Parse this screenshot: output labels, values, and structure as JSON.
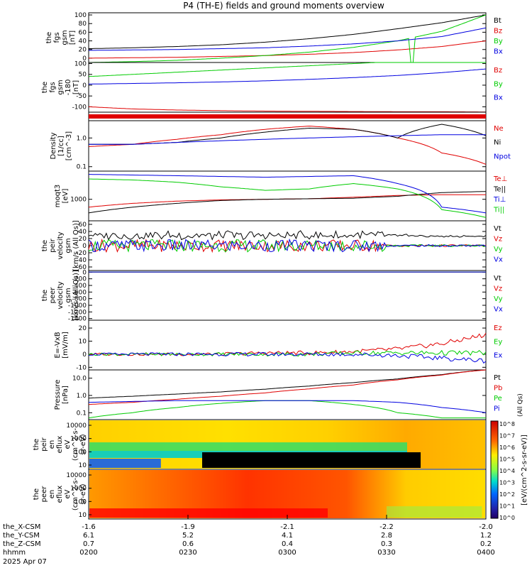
{
  "title": "P4 (TH-E) fields and ground moments overview",
  "colors": {
    "black": "#000000",
    "red": "#e00000",
    "green": "#00cc00",
    "blue": "#0000e0"
  },
  "chart_data": [
    {
      "id": "p1",
      "type": "line",
      "ylabel": [
        "the",
        "fgs",
        "gsm",
        "[nT]"
      ],
      "yticks": [
        "100",
        "80",
        "60",
        "40",
        "20",
        "0"
      ],
      "series": [
        {
          "name": "Bt",
          "color": "black",
          "values": [
            22,
            24,
            27,
            31,
            37,
            45,
            55,
            68,
            82,
            100
          ]
        },
        {
          "name": "Bz",
          "color": "red",
          "values": [
            0,
            1,
            2,
            4,
            6,
            9,
            13,
            19,
            27,
            40
          ]
        },
        {
          "name": "By",
          "color": "green",
          "values": [
            -10,
            -8,
            -5,
            0,
            6,
            14,
            25,
            40,
            62,
            100
          ]
        },
        {
          "name": "Bx",
          "color": "blue",
          "values": [
            18,
            19,
            20,
            22,
            24,
            28,
            33,
            40,
            50,
            70
          ]
        }
      ]
    },
    {
      "id": "p2",
      "type": "line",
      "ylabel": [
        "the",
        "fgs",
        "gsm",
        "-180"
      ],
      "yunit": "[nT]",
      "yticks": [
        "100",
        "50",
        "0",
        "-50",
        "-100"
      ],
      "series": [
        {
          "name": "Bz",
          "color": "red",
          "values": [
            -100,
            -110,
            -115,
            -118,
            -120,
            -121,
            -122,
            -123,
            -123,
            -124
          ]
        },
        {
          "name": "By",
          "color": "green",
          "values": [
            40,
            50,
            60,
            70,
            80,
            90,
            100,
            110,
            120,
            130
          ]
        },
        {
          "name": "Bx",
          "color": "blue",
          "values": [
            5,
            8,
            11,
            15,
            20,
            27,
            35,
            45,
            58,
            75
          ]
        }
      ]
    },
    {
      "id": "p3",
      "type": "bar",
      "description": "flag bar",
      "series": [
        {
          "name": "flag",
          "color": "red"
        }
      ]
    },
    {
      "id": "p4",
      "type": "line",
      "ylabel": [
        "Density",
        "[1/cc]",
        "[cm^-3]"
      ],
      "yticks": [
        "1.0",
        "0.1"
      ],
      "yscale": "log",
      "series": [
        {
          "name": "Ne",
          "color": "red",
          "values": [
            0.5,
            0.6,
            0.9,
            1.3,
            2.0,
            2.6,
            2.0,
            1.0,
            0.3,
            0.12
          ]
        },
        {
          "name": "Ni",
          "color": "black",
          "values": [
            0.6,
            0.6,
            0.7,
            1.0,
            1.6,
            2.2,
            2.0,
            1.0,
            3.0,
            1.2
          ]
        },
        {
          "name": "Npot",
          "color": "blue",
          "values": [
            0.6,
            0.6,
            0.7,
            0.8,
            0.9,
            1.0,
            1.1,
            1.2,
            1.3,
            1.3
          ]
        }
      ]
    },
    {
      "id": "p5",
      "type": "line",
      "ylabel": [
        "moqt3",
        "[eV]"
      ],
      "yticks": [
        "1000"
      ],
      "yscale": "log",
      "series": [
        {
          "name": "Te⊥",
          "color": "red",
          "values": [
            500,
            700,
            850,
            950,
            1000,
            1050,
            1200,
            1400,
            1500,
            1500
          ]
        },
        {
          "name": "Te||",
          "color": "black",
          "values": [
            300,
            500,
            700,
            900,
            1000,
            1050,
            1100,
            1300,
            1800,
            2000
          ]
        },
        {
          "name": "Ti⊥",
          "color": "blue",
          "values": [
            9000,
            8500,
            8000,
            7500,
            7000,
            7500,
            8000,
            4000,
            500,
            300
          ]
        },
        {
          "name": "Ti||",
          "color": "green",
          "values": [
            6000,
            5500,
            4500,
            3000,
            2200,
            2500,
            4000,
            2500,
            400,
            200
          ]
        }
      ]
    },
    {
      "id": "p6",
      "type": "line",
      "ylabel": [
        "the",
        "peir",
        "velocity",
        "gsm"
      ],
      "yunit": "[km/s (All Qs)]",
      "yticks": [
        "60",
        "40",
        "20",
        "0",
        "-20",
        "-40",
        "-60"
      ],
      "series": [
        {
          "name": "Vt",
          "color": "black"
        },
        {
          "name": "Vz",
          "color": "red"
        },
        {
          "name": "Vy",
          "color": "green"
        },
        {
          "name": "Vx",
          "color": "blue"
        }
      ]
    },
    {
      "id": "p7",
      "type": "line",
      "ylabel": [
        "the",
        "peer",
        "velocity",
        "gsm"
      ],
      "yunit": "[km/s (All Qs)]",
      "yticks": [
        "0",
        "-200",
        "-400",
        "-600",
        "-800",
        "-1000",
        "-1200",
        "-1400"
      ],
      "series": [
        {
          "name": "Vt",
          "color": "black"
        },
        {
          "name": "Vz",
          "color": "red"
        },
        {
          "name": "Vy",
          "color": "green"
        },
        {
          "name": "Vx",
          "color": "blue"
        }
      ]
    },
    {
      "id": "p8",
      "type": "line",
      "ylabel": [
        "E=-VxB",
        "[mV/m]"
      ],
      "yticks": [
        "20",
        "10",
        "0",
        "-10"
      ],
      "series": [
        {
          "name": "Ez",
          "color": "red",
          "values": [
            0,
            0,
            0,
            0,
            1,
            1,
            2,
            4,
            8,
            15
          ]
        },
        {
          "name": "Ey",
          "color": "green",
          "values": [
            0,
            0,
            0,
            0,
            0,
            0,
            1,
            1,
            1,
            1
          ]
        },
        {
          "name": "Ex",
          "color": "blue",
          "values": [
            0,
            0,
            0,
            0,
            0,
            0,
            0,
            -1,
            -3,
            -5
          ]
        }
      ]
    },
    {
      "id": "p9",
      "type": "line",
      "ylabel": [
        "Pressure",
        "[nPa]"
      ],
      "yticks": [
        "10.0",
        "1.0",
        "0.1"
      ],
      "yscale": "log",
      "series": [
        {
          "name": "Pt",
          "color": "black",
          "values": [
            0.7,
            0.9,
            1.2,
            1.6,
            2.3,
            3.5,
            5.5,
            9,
            16,
            30
          ]
        },
        {
          "name": "Pb",
          "color": "red",
          "values": [
            0.3,
            0.4,
            0.6,
            0.9,
            1.4,
            2.4,
            4,
            8,
            15,
            30
          ]
        },
        {
          "name": "Pe",
          "color": "green",
          "values": [
            0.05,
            0.1,
            0.2,
            0.35,
            0.5,
            0.5,
            0.3,
            0.1,
            0.05,
            0.05
          ]
        },
        {
          "name": "Pi",
          "color": "blue",
          "values": [
            0.4,
            0.45,
            0.5,
            0.5,
            0.5,
            0.5,
            0.5,
            0.4,
            0.2,
            0.1
          ]
        }
      ],
      "side_label": "(All Qs)"
    },
    {
      "id": "p10",
      "type": "heatmap",
      "ylabel": [
        "the",
        "peir",
        "en",
        "eflux",
        "eV",
        "(cm^2-s-",
        "sr-eV)"
      ],
      "yticks": [
        "10000",
        "1000",
        "100",
        "10"
      ]
    },
    {
      "id": "p11",
      "type": "heatmap",
      "ylabel": [
        "the",
        "peer",
        "en",
        "eflux",
        "eV",
        "(cm^2-s-",
        "sr-eV)"
      ],
      "yticks": [
        "10000",
        "1000",
        "100",
        "10"
      ]
    }
  ],
  "colorbar": {
    "ticks": [
      "10^8",
      "10^7",
      "10^6",
      "10^5",
      "10^4",
      "10^3",
      "10^2",
      "10^1",
      "10^0"
    ],
    "label": "[eV/(cm^2-s-sr-eV)]"
  },
  "xaxis": {
    "row_labels": [
      "the_X-CSM",
      "the_Y-CSM",
      "the_Z-CSM",
      "hhmm",
      "2025 Apr 07"
    ],
    "ticks": [
      {
        "x": "-1.6",
        "y": "6.1",
        "z": "0.7",
        "t": "0200"
      },
      {
        "x": "-1.9",
        "y": "5.2",
        "z": "0.6",
        "t": "0230"
      },
      {
        "x": "-2.1",
        "y": "4.1",
        "z": "0.4",
        "t": "0300"
      },
      {
        "x": "-2.2",
        "y": "2.8",
        "z": "0.3",
        "t": "0330"
      },
      {
        "x": "-2.0",
        "y": "1.2",
        "z": "0.2",
        "t": "0400"
      }
    ]
  }
}
